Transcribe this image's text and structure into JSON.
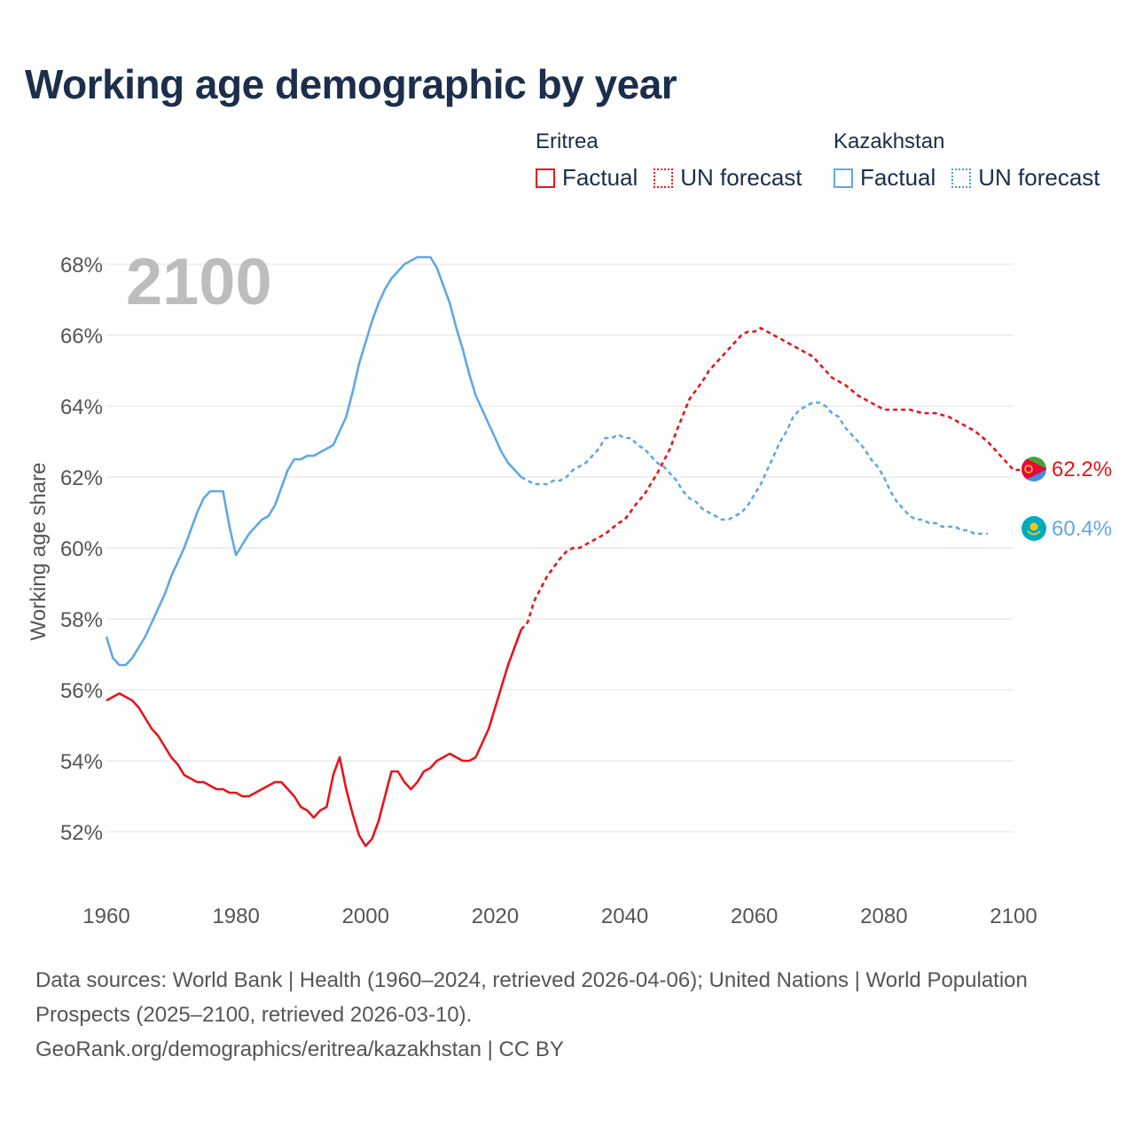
{
  "title": "Working age demographic by year",
  "legend": {
    "groups": [
      {
        "country": "Eritrea",
        "factual": "Factual",
        "forecast": "UN forecast",
        "color": "#e8141b"
      },
      {
        "country": "Kazakhstan",
        "factual": "Factual",
        "forecast": "UN forecast",
        "color": "#5fa8e6"
      }
    ]
  },
  "year_watermark": "2100",
  "colors": {
    "eritrea": "#e8141b",
    "kazakhstan": "#5fa8e6",
    "kazakhstan_forecast_legend": "#4aa3a8",
    "grid": "#e6e6e6",
    "tick": "#555555"
  },
  "chart_data": {
    "type": "line",
    "title": "Working age demographic by year",
    "xlabel": "",
    "ylabel": "Working age share",
    "xlim": [
      1960,
      2100
    ],
    "ylim": [
      50.8,
      68.5
    ],
    "x_ticks": [
      1960,
      1980,
      2000,
      2020,
      2040,
      2060,
      2080,
      2100
    ],
    "x_tick_labels": [
      "1960",
      "1980",
      "2000",
      "2020",
      "2040",
      "2060",
      "2080",
      "2100"
    ],
    "y_ticks": [
      52,
      54,
      56,
      58,
      60,
      62,
      64,
      66,
      68
    ],
    "y_tick_labels": [
      "52%",
      "54%",
      "56%",
      "58%",
      "60%",
      "62%",
      "64%",
      "66%",
      "68%"
    ],
    "grid": true,
    "factual_range": [
      1960,
      2024
    ],
    "forecast_range": [
      2025,
      2100
    ],
    "series": [
      {
        "name": "Eritrea",
        "end_label": "62.2%",
        "flag_icon": "eritrea-flag-icon",
        "points": [
          [
            1960,
            55.7
          ],
          [
            1962,
            55.9
          ],
          [
            1964,
            55.7
          ],
          [
            1965,
            55.5
          ],
          [
            1967,
            54.9
          ],
          [
            1968,
            54.7
          ],
          [
            1970,
            54.1
          ],
          [
            1971,
            53.9
          ],
          [
            1972,
            53.6
          ],
          [
            1974,
            53.4
          ],
          [
            1975,
            53.4
          ],
          [
            1977,
            53.2
          ],
          [
            1978,
            53.2
          ],
          [
            1979,
            53.1
          ],
          [
            1980,
            53.1
          ],
          [
            1981,
            53.0
          ],
          [
            1982,
            53.0
          ],
          [
            1984,
            53.2
          ],
          [
            1986,
            53.4
          ],
          [
            1987,
            53.4
          ],
          [
            1989,
            53.0
          ],
          [
            1990,
            52.7
          ],
          [
            1991,
            52.6
          ],
          [
            1992,
            52.4
          ],
          [
            1993,
            52.6
          ],
          [
            1994,
            52.7
          ],
          [
            1995,
            53.6
          ],
          [
            1996,
            54.1
          ],
          [
            1997,
            53.2
          ],
          [
            1998,
            52.5
          ],
          [
            1999,
            51.9
          ],
          [
            2000,
            51.6
          ],
          [
            2001,
            51.8
          ],
          [
            2002,
            52.3
          ],
          [
            2003,
            53.0
          ],
          [
            2004,
            53.7
          ],
          [
            2005,
            53.7
          ],
          [
            2006,
            53.4
          ],
          [
            2007,
            53.2
          ],
          [
            2008,
            53.4
          ],
          [
            2009,
            53.7
          ],
          [
            2010,
            53.8
          ],
          [
            2011,
            54.0
          ],
          [
            2013,
            54.2
          ],
          [
            2015,
            54.0
          ],
          [
            2016,
            54.0
          ],
          [
            2017,
            54.1
          ],
          [
            2019,
            54.9
          ],
          [
            2020,
            55.5
          ],
          [
            2022,
            56.7
          ],
          [
            2024,
            57.7
          ],
          [
            2025,
            57.9
          ],
          [
            2026,
            58.5
          ],
          [
            2028,
            59.2
          ],
          [
            2030,
            59.7
          ],
          [
            2031,
            59.9
          ],
          [
            2032,
            60.0
          ],
          [
            2033,
            60.0
          ],
          [
            2035,
            60.2
          ],
          [
            2037,
            60.4
          ],
          [
            2039,
            60.7
          ],
          [
            2040,
            60.8
          ],
          [
            2042,
            61.3
          ],
          [
            2043,
            61.5
          ],
          [
            2045,
            62.1
          ],
          [
            2047,
            62.8
          ],
          [
            2048,
            63.3
          ],
          [
            2050,
            64.2
          ],
          [
            2052,
            64.7
          ],
          [
            2053,
            65.0
          ],
          [
            2055,
            65.4
          ],
          [
            2057,
            65.8
          ],
          [
            2058,
            66.0
          ],
          [
            2059,
            66.1
          ],
          [
            2060,
            66.1
          ],
          [
            2061,
            66.2
          ],
          [
            2063,
            66.0
          ],
          [
            2065,
            65.8
          ],
          [
            2067,
            65.6
          ],
          [
            2069,
            65.4
          ],
          [
            2070,
            65.2
          ],
          [
            2072,
            64.8
          ],
          [
            2074,
            64.6
          ],
          [
            2076,
            64.3
          ],
          [
            2078,
            64.1
          ],
          [
            2080,
            63.9
          ],
          [
            2082,
            63.9
          ],
          [
            2084,
            63.9
          ],
          [
            2086,
            63.8
          ],
          [
            2088,
            63.8
          ],
          [
            2090,
            63.7
          ],
          [
            2092,
            63.5
          ],
          [
            2094,
            63.3
          ],
          [
            2096,
            63.0
          ],
          [
            2098,
            62.6
          ],
          [
            2100,
            62.2
          ],
          [
            2101,
            62.2
          ]
        ]
      },
      {
        "name": "Kazakhstan",
        "end_label": "60.4%",
        "flag_icon": "kazakhstan-flag-icon",
        "points": [
          [
            1960,
            57.5
          ],
          [
            1961,
            56.9
          ],
          [
            1962,
            56.7
          ],
          [
            1963,
            56.7
          ],
          [
            1964,
            56.9
          ],
          [
            1966,
            57.5
          ],
          [
            1968,
            58.3
          ],
          [
            1969,
            58.7
          ],
          [
            1970,
            59.2
          ],
          [
            1972,
            60.0
          ],
          [
            1974,
            61.0
          ],
          [
            1975,
            61.4
          ],
          [
            1976,
            61.6
          ],
          [
            1977,
            61.6
          ],
          [
            1978,
            61.6
          ],
          [
            1979,
            60.6
          ],
          [
            1980,
            59.8
          ],
          [
            1981,
            60.1
          ],
          [
            1982,
            60.4
          ],
          [
            1984,
            60.8
          ],
          [
            1985,
            60.9
          ],
          [
            1986,
            61.2
          ],
          [
            1987,
            61.7
          ],
          [
            1988,
            62.2
          ],
          [
            1989,
            62.5
          ],
          [
            1990,
            62.5
          ],
          [
            1991,
            62.6
          ],
          [
            1992,
            62.6
          ],
          [
            1993,
            62.7
          ],
          [
            1994,
            62.8
          ],
          [
            1995,
            62.9
          ],
          [
            1996,
            63.3
          ],
          [
            1997,
            63.7
          ],
          [
            1998,
            64.4
          ],
          [
            1999,
            65.2
          ],
          [
            2000,
            65.8
          ],
          [
            2001,
            66.4
          ],
          [
            2002,
            66.9
          ],
          [
            2003,
            67.3
          ],
          [
            2004,
            67.6
          ],
          [
            2005,
            67.8
          ],
          [
            2006,
            68.0
          ],
          [
            2007,
            68.1
          ],
          [
            2008,
            68.2
          ],
          [
            2009,
            68.2
          ],
          [
            2010,
            68.2
          ],
          [
            2011,
            67.9
          ],
          [
            2012,
            67.4
          ],
          [
            2013,
            66.9
          ],
          [
            2014,
            66.2
          ],
          [
            2015,
            65.6
          ],
          [
            2016,
            64.9
          ],
          [
            2017,
            64.3
          ],
          [
            2018,
            63.9
          ],
          [
            2019,
            63.5
          ],
          [
            2020,
            63.1
          ],
          [
            2021,
            62.7
          ],
          [
            2022,
            62.4
          ],
          [
            2023,
            62.2
          ],
          [
            2024,
            62.0
          ],
          [
            2025,
            61.9
          ],
          [
            2026,
            61.8
          ],
          [
            2027,
            61.8
          ],
          [
            2028,
            61.8
          ],
          [
            2029,
            61.9
          ],
          [
            2030,
            61.9
          ],
          [
            2031,
            62.0
          ],
          [
            2032,
            62.2
          ],
          [
            2033,
            62.3
          ],
          [
            2034,
            62.4
          ],
          [
            2035,
            62.6
          ],
          [
            2036,
            62.8
          ],
          [
            2037,
            63.1
          ],
          [
            2038,
            63.1
          ],
          [
            2039,
            63.2
          ],
          [
            2040,
            63.1
          ],
          [
            2041,
            63.1
          ],
          [
            2042,
            62.9
          ],
          [
            2043,
            62.8
          ],
          [
            2044,
            62.6
          ],
          [
            2045,
            62.4
          ],
          [
            2046,
            62.3
          ],
          [
            2047,
            62.1
          ],
          [
            2048,
            61.9
          ],
          [
            2049,
            61.6
          ],
          [
            2050,
            61.4
          ],
          [
            2051,
            61.3
          ],
          [
            2052,
            61.1
          ],
          [
            2053,
            61.0
          ],
          [
            2054,
            60.9
          ],
          [
            2055,
            60.8
          ],
          [
            2056,
            60.8
          ],
          [
            2057,
            60.9
          ],
          [
            2058,
            61.0
          ],
          [
            2059,
            61.2
          ],
          [
            2060,
            61.5
          ],
          [
            2061,
            61.8
          ],
          [
            2062,
            62.2
          ],
          [
            2063,
            62.6
          ],
          [
            2064,
            63.0
          ],
          [
            2065,
            63.3
          ],
          [
            2066,
            63.7
          ],
          [
            2067,
            63.9
          ],
          [
            2068,
            64.0
          ],
          [
            2069,
            64.1
          ],
          [
            2070,
            64.1
          ],
          [
            2071,
            64.0
          ],
          [
            2072,
            63.8
          ],
          [
            2073,
            63.7
          ],
          [
            2074,
            63.4
          ],
          [
            2075,
            63.2
          ],
          [
            2076,
            63.0
          ],
          [
            2077,
            62.8
          ],
          [
            2078,
            62.5
          ],
          [
            2079,
            62.3
          ],
          [
            2080,
            62.0
          ],
          [
            2081,
            61.6
          ],
          [
            2082,
            61.3
          ],
          [
            2083,
            61.1
          ],
          [
            2084,
            60.9
          ],
          [
            2085,
            60.8
          ],
          [
            2086,
            60.8
          ],
          [
            2087,
            60.7
          ],
          [
            2088,
            60.7
          ],
          [
            2089,
            60.6
          ],
          [
            2090,
            60.6
          ],
          [
            2091,
            60.6
          ],
          [
            2092,
            60.5
          ],
          [
            2093,
            60.5
          ],
          [
            2094,
            60.4
          ],
          [
            2095,
            60.4
          ],
          [
            2096,
            60.4
          ]
        ]
      }
    ]
  },
  "footer": {
    "sources": "Data sources: World Bank | Health (1960–2024, retrieved 2026-04-06); United Nations | World Population Prospects (2025–2100, retrieved 2026-03-10).",
    "link": "GeoRank.org/demographics/eritrea/kazakhstan | CC BY"
  }
}
